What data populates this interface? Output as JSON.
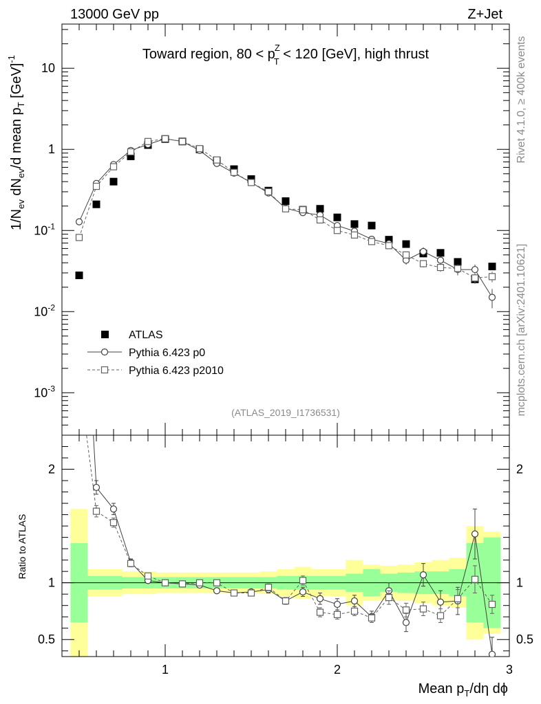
{
  "header": {
    "left": "13000 GeV pp",
    "right": "Z+Jet",
    "side_top": "Rivet 4.1.0, ≥ 400k events",
    "side_bottom": "mcplots.cern.ch [arXiv:2401.10621]",
    "analysis": "(ATLAS_2019_I1736531)"
  },
  "chart_data": {
    "type": "scatter",
    "title_parts": {
      "pre": "Toward region, 80 < p",
      "sup": "Z",
      "sub": "T",
      "post": " < 120 [GeV], high thrust"
    },
    "xlabel_parts": {
      "pre": "Mean p",
      "sub": "T",
      "post": "/dη dϕ"
    },
    "ylabel_parts": {
      "a": "1/N",
      "a_sub": "ev",
      "b": " dN",
      "b_sub": "ev",
      "c": "/d mean p",
      "c_sub": "T",
      "d": " [GeV]",
      "d_sup": "-1"
    },
    "ratio_ylabel": "Ratio to ATLAS",
    "xlim": [
      0.4,
      3.0
    ],
    "ylim": [
      0.0003,
      35
    ],
    "ratio_ylim": [
      0.35,
      2.3
    ],
    "x_ticks": [
      "1",
      "2",
      "3"
    ],
    "y_ticks": [
      {
        "base": "10",
        "exp": "-3"
      },
      {
        "base": "10",
        "exp": "-2"
      },
      {
        "base": "10",
        "exp": "-1"
      },
      {
        "base": "1",
        "exp": ""
      },
      {
        "base": "10",
        "exp": ""
      }
    ],
    "ratio_ticks": [
      "0.5",
      "1",
      "2"
    ],
    "x": [
      0.5,
      0.6,
      0.7,
      0.8,
      0.9,
      1.0,
      1.1,
      1.2,
      1.3,
      1.4,
      1.5,
      1.6,
      1.7,
      1.8,
      1.9,
      2.0,
      2.1,
      2.2,
      2.3,
      2.4,
      2.5,
      2.6,
      2.7,
      2.8,
      2.9
    ],
    "bin_edges": [
      0.45,
      0.55,
      0.65,
      0.75,
      0.85,
      0.95,
      1.05,
      1.15,
      1.25,
      1.35,
      1.45,
      1.55,
      1.65,
      1.75,
      1.85,
      1.95,
      2.05,
      2.15,
      2.25,
      2.35,
      2.45,
      2.55,
      2.65,
      2.75,
      2.85,
      2.95
    ],
    "series": [
      {
        "name": "ATLAS",
        "marker": "filled-square",
        "values": [
          0.028,
          0.21,
          0.4,
          0.82,
          1.13,
          1.34,
          1.25,
          1.0,
          0.73,
          0.57,
          0.43,
          0.31,
          0.23,
          0.18,
          0.185,
          0.145,
          0.12,
          0.115,
          0.077,
          0.068,
          0.052,
          0.053,
          0.041,
          0.025,
          0.036
        ]
      },
      {
        "name": "Pythia 6.423 p0",
        "marker": "open-circle",
        "line": "solid",
        "values": [
          0.128,
          0.38,
          0.65,
          0.97,
          1.15,
          1.35,
          1.25,
          0.97,
          0.67,
          0.51,
          0.39,
          0.29,
          0.188,
          0.166,
          0.155,
          0.115,
          0.098,
          0.078,
          0.069,
          0.043,
          0.055,
          0.043,
          0.033,
          0.033,
          0.015
        ],
        "errors": [
          0.006,
          0.01,
          0.015,
          0.02,
          0.02,
          0.02,
          0.02,
          0.02,
          0.015,
          0.01,
          0.01,
          0.008,
          0.008,
          0.008,
          0.008,
          0.006,
          0.006,
          0.005,
          0.005,
          0.005,
          0.007,
          0.005,
          0.005,
          0.005,
          0.004
        ],
        "ratio": [
          4.5,
          1.84,
          1.65,
          1.18,
          1.02,
          1.0,
          0.99,
          0.98,
          0.93,
          0.91,
          0.92,
          0.94,
          0.84,
          0.92,
          0.86,
          0.81,
          0.84,
          0.7,
          0.93,
          0.65,
          1.07,
          0.83,
          0.84,
          1.43,
          0.37
        ],
        "ratio_errors": [
          0.2,
          0.06,
          0.05,
          0.03,
          0.02,
          0.02,
          0.02,
          0.02,
          0.02,
          0.02,
          0.02,
          0.03,
          0.03,
          0.04,
          0.05,
          0.05,
          0.05,
          0.05,
          0.07,
          0.08,
          0.1,
          0.1,
          0.12,
          0.22,
          0.15
        ]
      },
      {
        "name": "Pythia 6.423 p2010",
        "marker": "open-square",
        "line": "dashed",
        "values": [
          0.082,
          0.35,
          0.61,
          0.93,
          1.25,
          1.35,
          1.25,
          1.02,
          0.74,
          0.52,
          0.39,
          0.3,
          0.185,
          0.18,
          0.135,
          0.1,
          0.088,
          0.073,
          0.065,
          0.05,
          0.039,
          0.035,
          0.034,
          0.026,
          0.027
        ],
        "errors": [
          0.005,
          0.01,
          0.015,
          0.02,
          0.02,
          0.02,
          0.02,
          0.02,
          0.015,
          0.01,
          0.01,
          0.008,
          0.008,
          0.008,
          0.007,
          0.006,
          0.006,
          0.005,
          0.005,
          0.005,
          0.004,
          0.004,
          0.004,
          0.004,
          0.004
        ],
        "ratio": [
          2.8,
          1.63,
          1.53,
          1.17,
          1.06,
          1.0,
          0.99,
          1.0,
          1.0,
          0.91,
          0.91,
          0.96,
          0.84,
          1.02,
          0.74,
          0.72,
          0.75,
          0.69,
          0.87,
          0.76,
          0.77,
          0.71,
          0.86,
          1.03,
          0.81
        ],
        "ratio_errors": [
          0.15,
          0.05,
          0.04,
          0.03,
          0.02,
          0.02,
          0.02,
          0.02,
          0.02,
          0.02,
          0.02,
          0.03,
          0.03,
          0.04,
          0.04,
          0.04,
          0.04,
          0.04,
          0.06,
          0.06,
          0.06,
          0.06,
          0.08,
          0.12,
          0.08
        ]
      }
    ],
    "bands": {
      "green_halfwidth": [
        0.35,
        0.06,
        0.06,
        0.05,
        0.05,
        0.05,
        0.05,
        0.05,
        0.05,
        0.05,
        0.05,
        0.05,
        0.06,
        0.06,
        0.06,
        0.06,
        0.08,
        0.12,
        0.08,
        0.09,
        0.1,
        0.1,
        0.12,
        0.35,
        0.4
      ],
      "yellow_halfwidth": [
        0.65,
        0.12,
        0.12,
        0.1,
        0.1,
        0.09,
        0.09,
        0.09,
        0.09,
        0.09,
        0.09,
        0.1,
        0.12,
        0.14,
        0.12,
        0.12,
        0.2,
        0.16,
        0.15,
        0.16,
        0.18,
        0.2,
        0.22,
        0.5,
        0.45
      ]
    },
    "colors": {
      "atlas": "#000000",
      "p0": "#404040",
      "p2010": "#606060",
      "green": "#99ff99",
      "yellow": "#ffff99",
      "frame": "#000000",
      "label_grey": "#8a8a8a"
    }
  }
}
